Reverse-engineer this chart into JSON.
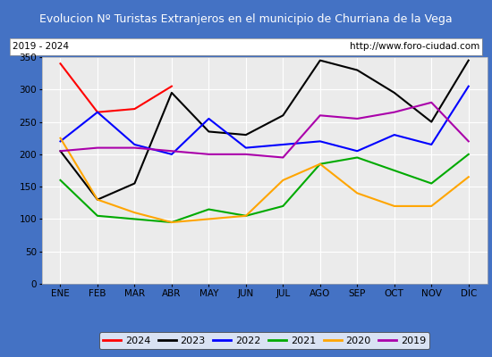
{
  "title": "Evolucion Nº Turistas Extranjeros en el municipio de Churriana de la Vega",
  "subtitle_left": "2019 - 2024",
  "subtitle_right": "http://www.foro-ciudad.com",
  "xlabel_months": [
    "ENE",
    "FEB",
    "MAR",
    "ABR",
    "MAY",
    "JUN",
    "JUL",
    "AGO",
    "SEP",
    "OCT",
    "NOV",
    "DIC"
  ],
  "ylim": [
    0,
    350
  ],
  "yticks": [
    0,
    50,
    100,
    150,
    200,
    250,
    300,
    350
  ],
  "series": {
    "2024": {
      "color": "#ff0000",
      "values": [
        340,
        265,
        270,
        305,
        null,
        null,
        null,
        null,
        null,
        null,
        null,
        null
      ]
    },
    "2023": {
      "color": "#000000",
      "values": [
        205,
        130,
        155,
        295,
        235,
        230,
        260,
        345,
        330,
        295,
        250,
        345
      ]
    },
    "2022": {
      "color": "#0000ff",
      "values": [
        220,
        265,
        215,
        200,
        255,
        210,
        215,
        220,
        205,
        230,
        215,
        305
      ]
    },
    "2021": {
      "color": "#00aa00",
      "values": [
        160,
        105,
        100,
        95,
        115,
        105,
        120,
        185,
        195,
        175,
        155,
        200
      ]
    },
    "2020": {
      "color": "#ffa500",
      "values": [
        225,
        130,
        110,
        95,
        100,
        105,
        160,
        185,
        140,
        120,
        120,
        165
      ]
    },
    "2019": {
      "color": "#aa00aa",
      "values": [
        205,
        210,
        210,
        205,
        200,
        200,
        195,
        260,
        255,
        265,
        280,
        220
      ]
    }
  },
  "title_bg_color": "#4472c4",
  "title_text_color": "#ffffff",
  "plot_bg_color": "#ebebeb",
  "grid_color": "#ffffff",
  "outer_bg_color": "#4472c4",
  "inner_bg_color": "#ffffff",
  "legend_labels": [
    "2024",
    "2023",
    "2022",
    "2021",
    "2020",
    "2019"
  ],
  "legend_colors": [
    "#ff0000",
    "#000000",
    "#0000ff",
    "#00aa00",
    "#ffa500",
    "#aa00aa"
  ],
  "title_fontsize": 9.0,
  "tick_fontsize": 7.5,
  "legend_fontsize": 8.0
}
